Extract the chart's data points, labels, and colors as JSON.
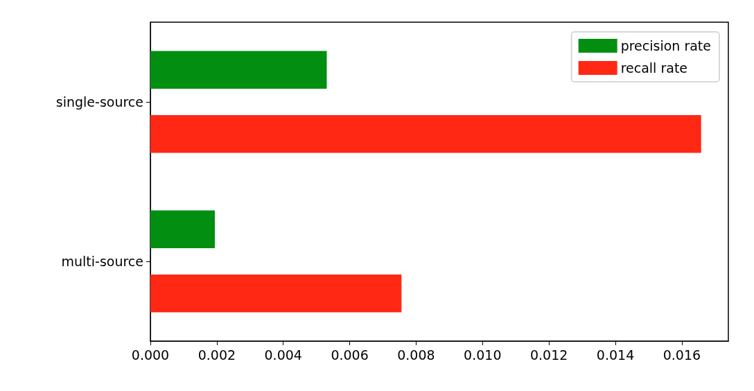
{
  "chart_data": {
    "type": "bar",
    "orientation": "horizontal",
    "categories": [
      "single-source",
      "multi-source"
    ],
    "series": [
      {
        "name": "precision rate",
        "color": "#028f11",
        "values": [
          0.00531,
          0.00194
        ]
      },
      {
        "name": "recall rate",
        "color": "#ff2814",
        "values": [
          0.01658,
          0.00756
        ]
      }
    ],
    "xlim": [
      0,
      0.0174
    ],
    "xticks": [
      {
        "value": 0,
        "label": "0.000"
      },
      0.002,
      0.004,
      0.006,
      0.008,
      {
        "value": 0.01,
        "label": "0.010"
      },
      0.012,
      0.014,
      0.016
    ],
    "grid": false,
    "legend": "top right"
  }
}
